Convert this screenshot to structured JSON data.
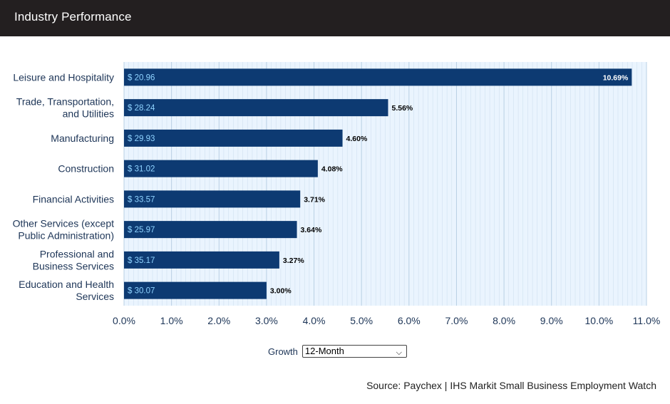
{
  "header": {
    "title": "Industry Performance"
  },
  "controls": {
    "growth_label": "Growth",
    "period_selected": "12-Month",
    "chevron_icon": "chevron-down-icon"
  },
  "source": "Source: Paychex | IHS Markit Small Business Employment Watch",
  "colors": {
    "bar": "#0d3a72",
    "plot_bg": "#eaf4fe",
    "gridline": "#b9d0e4",
    "wage_text": "#8fd3ff"
  },
  "chart_data": {
    "type": "bar",
    "orientation": "horizontal",
    "title": "",
    "xlabel": "",
    "ylabel": "",
    "xlim": [
      0,
      11
    ],
    "x_tick_labels": [
      "0.0%",
      "1.0%",
      "2.0%",
      "3.0%",
      "4.0%",
      "5.0%",
      "6.0%",
      "7.0%",
      "8.0%",
      "9.0%",
      "10.0%",
      "11.0%"
    ],
    "grid": true,
    "categories": [
      "Leisure and Hospitality",
      "Trade, Transportation, and Utilities",
      "Manufacturing",
      "Construction",
      "Financial Activities",
      "Other Services (except Public Administration)",
      "Professional and Business Services",
      "Education and Health Services"
    ],
    "category_lines": [
      [
        "Leisure and Hospitality"
      ],
      [
        "Trade, Transportation,",
        "and Utilities"
      ],
      [
        "Manufacturing"
      ],
      [
        "Construction"
      ],
      [
        "Financial Activities"
      ],
      [
        "Other Services (except",
        "Public Administration)"
      ],
      [
        "Professional and",
        "Business Services"
      ],
      [
        "Education and Health",
        "Services"
      ]
    ],
    "values": [
      10.69,
      5.56,
      4.6,
      4.08,
      3.71,
      3.64,
      3.27,
      3.0
    ],
    "value_labels": [
      "10.69%",
      "5.56%",
      "4.60%",
      "4.08%",
      "3.71%",
      "3.64%",
      "3.27%",
      "3.00%"
    ],
    "wages": [
      "$ 20.96",
      "$ 28.24",
      "$ 29.93",
      "$ 31.02",
      "$ 33.57",
      "$ 25.97",
      "$ 35.17",
      "$ 30.07"
    ]
  }
}
